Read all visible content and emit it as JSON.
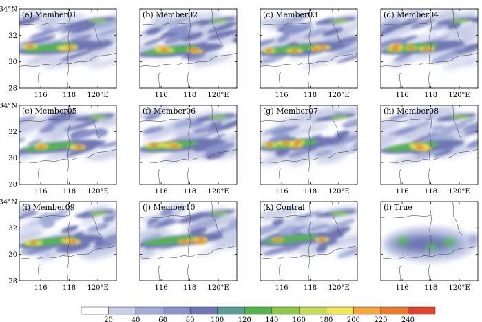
{
  "figure": {
    "panels": [
      {
        "label": "(a) Member01",
        "pattern": 0
      },
      {
        "label": "(b) Member02",
        "pattern": 1
      },
      {
        "label": "(c) Member03",
        "pattern": 2
      },
      {
        "label": "(d) Member04",
        "pattern": 3
      },
      {
        "label": "(e) Member05",
        "pattern": 4
      },
      {
        "label": "(f) Member06",
        "pattern": 5
      },
      {
        "label": "(g) Member07",
        "pattern": 6
      },
      {
        "label": "(h) Member08",
        "pattern": 7
      },
      {
        "label": "(i) Member09",
        "pattern": 8
      },
      {
        "label": "(j) Member10",
        "pattern": 9
      },
      {
        "label": "(k) Contral",
        "pattern": 10
      },
      {
        "label": "(l) True",
        "pattern": 11
      }
    ],
    "x_ticks": [
      "116",
      "118",
      "120°E"
    ],
    "y_ticks": [
      "34°N",
      "32",
      "30",
      "28"
    ],
    "colorbar": {
      "ticks": [
        "20",
        "40",
        "60",
        "80",
        "100",
        "120",
        "140",
        "160",
        "180",
        "200",
        "220",
        "240"
      ],
      "colors": [
        "#ffffff",
        "#c9cfe8",
        "#a3aed8",
        "#8a93c9",
        "#6f76b3",
        "#5a9c93",
        "#55b34d",
        "#8cc84b",
        "#c5dc55",
        "#f0e655",
        "#f3a83d",
        "#ec7a2e",
        "#e2432c"
      ]
    }
  }
}
